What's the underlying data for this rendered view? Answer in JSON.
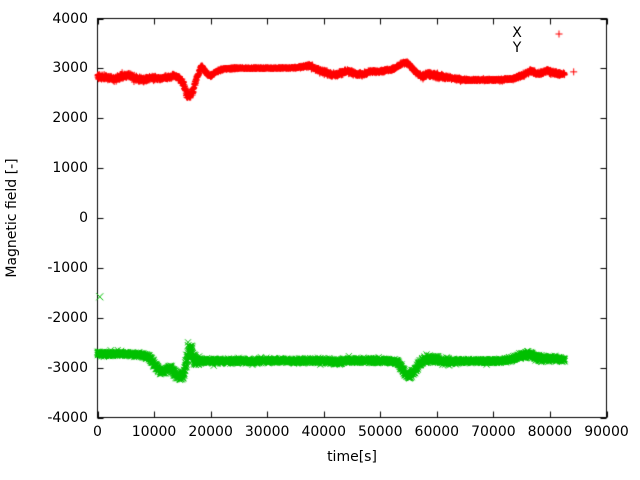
{
  "chart_data": {
    "type": "scatter",
    "title": "",
    "xlabel": "time[s]",
    "ylabel": "Magnetic field [-]",
    "xlim": [
      0,
      90000
    ],
    "ylim": [
      -4000,
      4000
    ],
    "xticks": [
      0,
      10000,
      20000,
      30000,
      40000,
      50000,
      60000,
      70000,
      80000,
      90000
    ],
    "yticks": [
      4000,
      3000,
      2000,
      1000,
      0,
      -1000,
      -2000,
      -3000,
      -4000
    ],
    "grid": false,
    "legend_position": "top-right-inside",
    "background_color": "#ffffff",
    "axis_color": "#000000",
    "series": [
      {
        "name": "X",
        "color": "#ff0000",
        "marker": "plus",
        "legend_marker_visible": true,
        "sample_step_s": 25,
        "band_keypoints": [
          [
            0,
            2820,
            70
          ],
          [
            1500,
            2830,
            60
          ],
          [
            3000,
            2780,
            70
          ],
          [
            4500,
            2850,
            65
          ],
          [
            5500,
            2865,
            60
          ],
          [
            7000,
            2790,
            70
          ],
          [
            8200,
            2770,
            60
          ],
          [
            9500,
            2820,
            55
          ],
          [
            11000,
            2800,
            50
          ],
          [
            12500,
            2815,
            55
          ],
          [
            13500,
            2860,
            60
          ],
          [
            14500,
            2790,
            60
          ],
          [
            15200,
            2680,
            90
          ],
          [
            15700,
            2500,
            120
          ],
          [
            16300,
            2440,
            100
          ],
          [
            16900,
            2560,
            110
          ],
          [
            17400,
            2760,
            70
          ],
          [
            18400,
            3050,
            50
          ],
          [
            19400,
            2890,
            50
          ],
          [
            20200,
            2860,
            45
          ],
          [
            21200,
            2950,
            40
          ],
          [
            22200,
            2980,
            35
          ],
          [
            23500,
            3000,
            30
          ],
          [
            25000,
            3005,
            22
          ],
          [
            30000,
            3005,
            18
          ],
          [
            35000,
            3010,
            20
          ],
          [
            36500,
            3035,
            40
          ],
          [
            37500,
            3060,
            50
          ],
          [
            38500,
            2990,
            55
          ],
          [
            40000,
            2930,
            60
          ],
          [
            41500,
            2870,
            60
          ],
          [
            43000,
            2895,
            55
          ],
          [
            44200,
            2950,
            50
          ],
          [
            45500,
            2900,
            50
          ],
          [
            46800,
            2875,
            50
          ],
          [
            48000,
            2930,
            45
          ],
          [
            49500,
            2940,
            40
          ],
          [
            51000,
            2955,
            40
          ],
          [
            52500,
            3000,
            40
          ],
          [
            54000,
            3100,
            45
          ],
          [
            54800,
            3120,
            45
          ],
          [
            56000,
            2950,
            55
          ],
          [
            57300,
            2830,
            60
          ],
          [
            58500,
            2880,
            65
          ],
          [
            60000,
            2850,
            65
          ],
          [
            61500,
            2825,
            55
          ],
          [
            63000,
            2795,
            40
          ],
          [
            65000,
            2770,
            32
          ],
          [
            68000,
            2765,
            28
          ],
          [
            71000,
            2770,
            28
          ],
          [
            73500,
            2790,
            35
          ],
          [
            75000,
            2855,
            55
          ],
          [
            76500,
            2940,
            55
          ],
          [
            78000,
            2895,
            50
          ],
          [
            79500,
            2950,
            55
          ],
          [
            80600,
            2915,
            50
          ],
          [
            81600,
            2880,
            55
          ],
          [
            82600,
            2890,
            45
          ]
        ],
        "outlier_points": [
          [
            84200,
            2930
          ]
        ]
      },
      {
        "name": "Y",
        "color": "#00c000",
        "marker": "cross",
        "legend_marker_visible": false,
        "sample_step_s": 25,
        "band_keypoints": [
          [
            0,
            -2720,
            60
          ],
          [
            2000,
            -2730,
            55
          ],
          [
            4000,
            -2720,
            55
          ],
          [
            6000,
            -2730,
            50
          ],
          [
            8000,
            -2745,
            55
          ],
          [
            9200,
            -2800,
            65
          ],
          [
            10200,
            -2960,
            80
          ],
          [
            11200,
            -3080,
            75
          ],
          [
            12200,
            -3050,
            70
          ],
          [
            12900,
            -2990,
            70
          ],
          [
            13700,
            -3120,
            80
          ],
          [
            14600,
            -3180,
            80
          ],
          [
            15300,
            -3140,
            100
          ],
          [
            15900,
            -2750,
            280
          ],
          [
            16500,
            -2600,
            220
          ],
          [
            17000,
            -2850,
            180
          ],
          [
            17800,
            -2870,
            70
          ],
          [
            19500,
            -2865,
            60
          ],
          [
            22000,
            -2870,
            60
          ],
          [
            25000,
            -2865,
            60
          ],
          [
            28000,
            -2870,
            55
          ],
          [
            31000,
            -2860,
            55
          ],
          [
            33500,
            -2855,
            60
          ],
          [
            35500,
            -2875,
            70
          ],
          [
            37000,
            -2855,
            60
          ],
          [
            39000,
            -2860,
            60
          ],
          [
            41000,
            -2870,
            65
          ],
          [
            42300,
            -2895,
            80
          ],
          [
            43500,
            -2860,
            60
          ],
          [
            46000,
            -2855,
            60
          ],
          [
            48500,
            -2860,
            60
          ],
          [
            51000,
            -2865,
            55
          ],
          [
            53000,
            -2885,
            60
          ],
          [
            54300,
            -3090,
            80
          ],
          [
            55100,
            -3165,
            75
          ],
          [
            55900,
            -3090,
            85
          ],
          [
            56900,
            -2910,
            95
          ],
          [
            58200,
            -2835,
            85
          ],
          [
            59600,
            -2825,
            85
          ],
          [
            61000,
            -2875,
            90
          ],
          [
            62600,
            -2885,
            80
          ],
          [
            64000,
            -2870,
            55
          ],
          [
            66500,
            -2868,
            48
          ],
          [
            69000,
            -2870,
            48
          ],
          [
            71500,
            -2862,
            50
          ],
          [
            73200,
            -2835,
            60
          ],
          [
            74800,
            -2765,
            70
          ],
          [
            76200,
            -2725,
            80
          ],
          [
            77600,
            -2800,
            75
          ],
          [
            79000,
            -2820,
            70
          ],
          [
            80600,
            -2812,
            70
          ],
          [
            81800,
            -2830,
            65
          ],
          [
            82600,
            -2840,
            60
          ]
        ],
        "outlier_points": [
          [
            400,
            -1580
          ]
        ]
      }
    ]
  }
}
